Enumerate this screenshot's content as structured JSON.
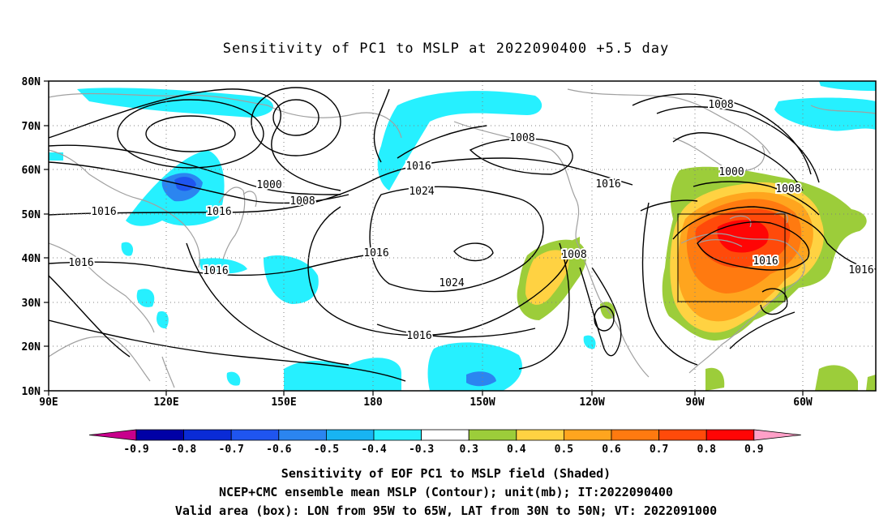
{
  "title": "Sensitivity of PC1 to MSLP at 2022090400 +5.5 day",
  "axes": {
    "lat_labels": [
      "80N",
      "70N",
      "60N",
      "50N",
      "40N",
      "30N",
      "20N",
      "10N"
    ],
    "lon_labels": [
      "90E",
      "120E",
      "150E",
      "180",
      "150W",
      "120W",
      "90W",
      "60W"
    ]
  },
  "contour_labels": [
    "1000",
    "1008",
    "1016",
    "1016",
    "1016",
    "1016",
    "1008",
    "1016",
    "1024",
    "1016",
    "1024",
    "1016",
    "1008",
    "1016",
    "1008",
    "1000",
    "1008",
    "1016",
    "1016"
  ],
  "colorbar": {
    "labels": [
      "-0.9",
      "-0.8",
      "-0.7",
      "-0.6",
      "-0.5",
      "-0.4",
      "-0.3",
      "0.3",
      "0.4",
      "0.5",
      "0.6",
      "0.7",
      "0.8",
      "0.9"
    ],
    "colors": [
      "#0000a6",
      "#0a2bd6",
      "#1f55f0",
      "#2b85f0",
      "#18b4f2",
      "#26f0ff",
      "#ffffff",
      "#9ccd3a",
      "#ffd242",
      "#ffa51e",
      "#ff7a10",
      "#ff4a0a",
      "#ff0505"
    ],
    "low_end_color": "#c8008c",
    "high_end_color": "#ffa0c8"
  },
  "valid_box": {
    "lon_min": "95W",
    "lon_max": "65W",
    "lat_min": "30N",
    "lat_max": "50N"
  },
  "captions": {
    "line1": "Sensitivity of EOF PC1 to MSLP field (Shaded)",
    "line2": "NCEP+CMC ensemble mean MSLP (Contour); unit(mb); IT:2022090400",
    "line3": "Valid area (box): LON from 95W to 65W, LAT from 30N to 50N; VT: 2022091000"
  }
}
